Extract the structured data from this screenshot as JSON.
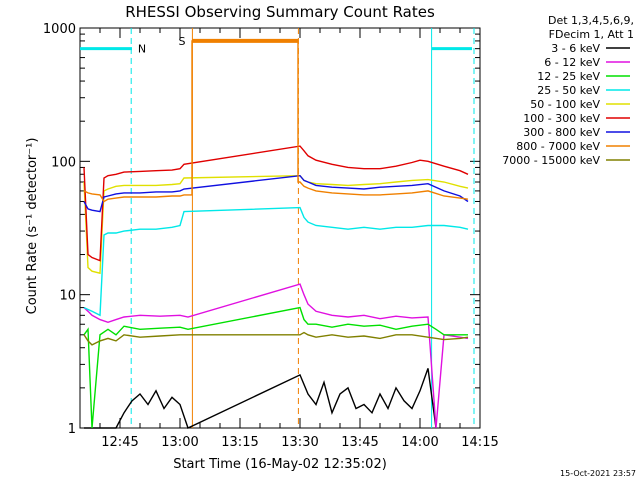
{
  "chart_data": {
    "type": "line",
    "title": "RHESSI Observing Summary Count Rates",
    "xlabel": "Start Time (16-May-02 12:35:02)",
    "ylabel": "Count Rate (s⁻¹ detector⁻¹)",
    "yscale": "log",
    "ylim": [
      1,
      1000
    ],
    "xlim_minutes": [
      35,
      135
    ],
    "x_ticks": [
      {
        "value": 45,
        "label": "12:45"
      },
      {
        "value": 60,
        "label": "13:00"
      },
      {
        "value": 75,
        "label": "13:15"
      },
      {
        "value": 90,
        "label": "13:30"
      },
      {
        "value": 105,
        "label": "13:45"
      },
      {
        "value": 120,
        "label": "14:00"
      },
      {
        "value": 135,
        "label": "14:15"
      }
    ],
    "y_ticks": [
      {
        "value": 1,
        "label": "1"
      },
      {
        "value": 10,
        "label": "10"
      },
      {
        "value": 100,
        "label": "100"
      },
      {
        "value": 1000,
        "label": "1000"
      }
    ],
    "legend_header": [
      "Det 1,3,4,5,6,9,",
      "FDecim 1, Att 1"
    ],
    "legend_position": "right",
    "series": [
      {
        "name": "3 - 6 keV",
        "color": "#000000",
        "x": [
          36,
          38,
          40,
          42,
          44,
          46,
          48,
          50,
          52,
          54,
          56,
          58,
          60,
          62,
          90,
          92,
          94,
          96,
          98,
          100,
          102,
          104,
          106,
          108,
          110,
          112,
          114,
          116,
          118,
          120,
          122,
          124
        ],
        "y": [
          1,
          1,
          1,
          1,
          1,
          1.3,
          1.6,
          1.8,
          1.5,
          1.9,
          1.4,
          1.7,
          1.5,
          1,
          2.5,
          1.8,
          1.5,
          2.2,
          1.3,
          1.8,
          2,
          1.4,
          1.5,
          1.3,
          1.8,
          1.4,
          2,
          1.6,
          1.4,
          1.9,
          2.8,
          1
        ]
      },
      {
        "name": "6 - 12 keV",
        "color": "#e010e0",
        "x": [
          36,
          37,
          38,
          40,
          42,
          44,
          46,
          50,
          55,
          60,
          62,
          90,
          91,
          92,
          94,
          98,
          102,
          106,
          110,
          114,
          118,
          122,
          124,
          126,
          130,
          132
        ],
        "y": [
          8,
          7.5,
          7,
          6.5,
          6.2,
          6.5,
          6.8,
          7,
          6.9,
          7,
          6.8,
          12,
          10,
          8.5,
          7.5,
          7,
          6.8,
          7,
          6.6,
          6.9,
          6.7,
          6.8,
          1,
          5,
          4.8,
          4.7
        ]
      },
      {
        "name": "12 - 25 keV",
        "color": "#00e000",
        "x": [
          36,
          37,
          38,
          40,
          42,
          44,
          46,
          50,
          55,
          60,
          62,
          90,
          91,
          92,
          94,
          98,
          102,
          106,
          110,
          114,
          118,
          122,
          124,
          126,
          130,
          132
        ],
        "y": [
          5,
          5.5,
          1,
          5,
          5.5,
          5,
          5.8,
          5.5,
          5.6,
          5.7,
          5.5,
          8,
          6.5,
          6,
          6,
          5.7,
          6,
          5.8,
          5.9,
          5.5,
          5.8,
          6,
          5.5,
          5,
          5,
          5
        ]
      },
      {
        "name": "25 - 50 keV",
        "color": "#00e8e8",
        "x": [
          36,
          38,
          40,
          41,
          42,
          44,
          46,
          50,
          54,
          58,
          60,
          61,
          90,
          91,
          92,
          94,
          98,
          102,
          106,
          110,
          114,
          118,
          122,
          126,
          130,
          132
        ],
        "y": [
          8,
          7.5,
          7,
          28,
          29,
          29,
          30,
          31,
          31,
          32,
          33,
          42,
          45,
          38,
          35,
          33,
          32,
          31,
          32,
          31,
          32,
          32,
          33,
          33,
          32,
          31
        ]
      },
      {
        "name": "50 - 100 keV",
        "color": "#e0e000",
        "x": [
          36,
          37,
          38,
          40,
          41,
          42,
          44,
          46,
          50,
          54,
          58,
          60,
          61,
          90,
          91,
          92,
          94,
          98,
          102,
          106,
          110,
          114,
          118,
          122,
          126,
          130,
          132
        ],
        "y": [
          70,
          16,
          15,
          14.5,
          60,
          62,
          65,
          66,
          66,
          66,
          67,
          68,
          75,
          78,
          72,
          70,
          68,
          67,
          66,
          67,
          68,
          70,
          72,
          73,
          70,
          65,
          63
        ]
      },
      {
        "name": "100 - 300 keV",
        "color": "#e00000",
        "x": [
          36,
          37,
          38,
          40,
          41,
          42,
          44,
          46,
          50,
          54,
          58,
          60,
          61,
          90,
          91,
          92,
          94,
          98,
          102,
          106,
          110,
          114,
          118,
          120,
          122,
          126,
          130,
          132
        ],
        "y": [
          90,
          20,
          19,
          18,
          75,
          78,
          80,
          83,
          84,
          85,
          86,
          88,
          95,
          130,
          120,
          110,
          102,
          95,
          90,
          88,
          88,
          92,
          98,
          102,
          100,
          92,
          85,
          80
        ]
      },
      {
        "name": "300 - 800 keV",
        "color": "#1010e0",
        "x": [
          36,
          37,
          38,
          40,
          41,
          42,
          44,
          46,
          50,
          54,
          58,
          60,
          61,
          90,
          91,
          92,
          94,
          98,
          102,
          106,
          110,
          114,
          118,
          122,
          126,
          130,
          132
        ],
        "y": [
          50,
          44,
          43,
          42,
          54,
          55,
          57,
          58,
          58,
          59,
          59,
          60,
          62,
          78,
          72,
          70,
          66,
          64,
          63,
          62,
          64,
          65,
          66,
          68,
          60,
          55,
          50
        ]
      },
      {
        "name": "800 - 7000 keV",
        "color": "#f08000",
        "x": [
          36,
          37,
          38,
          40,
          41,
          42,
          44,
          46,
          50,
          54,
          58,
          60,
          61,
          63,
          63.01,
          75,
          89.5,
          89.51,
          90,
          91,
          92,
          94,
          98,
          102,
          106,
          110,
          114,
          118,
          122,
          126,
          130,
          132
        ],
        "y": [
          60,
          58,
          57,
          56,
          50,
          52,
          53,
          54,
          54,
          54,
          55,
          55,
          56,
          56,
          800,
          800,
          800,
          70,
          70,
          65,
          63,
          60,
          58,
          57,
          56,
          56,
          57,
          58,
          60,
          55,
          53,
          52
        ]
      },
      {
        "name": "7000 - 15000 keV",
        "color": "#808000",
        "x": [
          36,
          37,
          38,
          40,
          42,
          44,
          46,
          50,
          55,
          60,
          62,
          90,
          91,
          92,
          94,
          98,
          102,
          106,
          110,
          114,
          118,
          122,
          126,
          130,
          132
        ],
        "y": [
          5,
          4.5,
          4.2,
          4.5,
          4.7,
          4.5,
          5,
          4.8,
          4.9,
          5,
          5,
          5,
          5.2,
          5,
          4.8,
          5,
          4.8,
          4.9,
          4.7,
          5,
          5,
          4.8,
          4.6,
          4.7,
          4.8
        ]
      }
    ],
    "annotations": [
      {
        "label": "N",
        "color": "#00e8e8",
        "intervals": [
          [
            35,
            48
          ],
          [
            123,
            133
          ]
        ],
        "level": 700
      },
      {
        "label": "S",
        "color": "#f08000",
        "intervals": [
          [
            63,
            89.5
          ]
        ],
        "level": 800
      }
    ],
    "markers": [
      {
        "x": 47.8,
        "color": "#00e8e8",
        "style": "dashed"
      },
      {
        "x": 63.1,
        "color": "#f08000",
        "style": "solid"
      },
      {
        "x": 89.6,
        "color": "#f08000",
        "style": "dashed"
      },
      {
        "x": 122.9,
        "color": "#00e8e8",
        "style": "solid"
      },
      {
        "x": 133.5,
        "color": "#00e8e8",
        "style": "dashed"
      }
    ],
    "footer_date": "15-Oct-2021 23:57"
  }
}
